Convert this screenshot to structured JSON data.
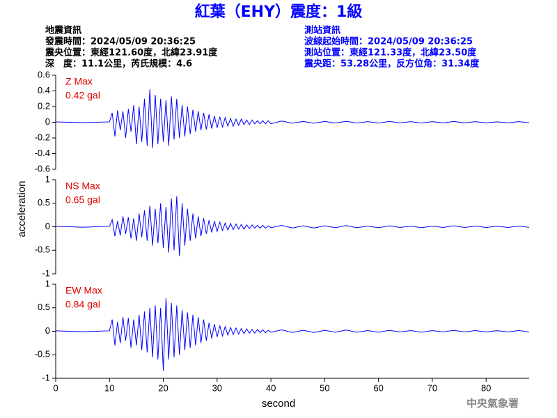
{
  "header": {
    "title": "紅葉（EHY）震度：1級",
    "left_info": [
      "地震資訊",
      "發震時間：2024/05/09 20:36:25",
      "震央位置：東經121.60度，北緯23.91度",
      "深　度：11.1公里，芮氏規模：4.6"
    ],
    "right_info": [
      "測站資訊",
      "波線起始時間：2024/05/09 20:36:25",
      "測站位置：東經121.33度，北緯23.50度",
      "震央距：53.28公里，反方位角：31.34度"
    ],
    "ylabel": "acceleration",
    "watermark": "中央氣象署"
  },
  "chart_data": [
    {
      "type": "line",
      "label": "Z Max",
      "max_label": "0.42 gal",
      "color": "#0000ff",
      "xlim": [
        0,
        88
      ],
      "ylim": [
        -0.6,
        0.6
      ],
      "yticks": [
        -0.6,
        -0.4,
        -0.2,
        0,
        0.2,
        0.4,
        0.6
      ],
      "x": [
        0,
        5,
        10,
        10.5,
        11,
        11.5,
        12,
        12.5,
        13,
        13.5,
        14,
        14.5,
        15,
        15.5,
        16,
        16.5,
        17,
        17.5,
        18,
        18.5,
        19,
        19.5,
        20,
        20.5,
        21,
        21.5,
        22,
        22.5,
        23,
        23.5,
        24,
        24.5,
        25,
        25.5,
        26,
        26.5,
        27,
        27.5,
        28,
        28.5,
        29,
        29.5,
        30,
        30.5,
        31,
        31.5,
        32,
        32.5,
        33,
        33.5,
        34,
        34.5,
        35,
        35.5,
        36,
        36.5,
        37,
        37.5,
        38,
        38.5,
        39,
        39.5,
        40,
        42,
        44,
        46,
        48,
        50,
        52,
        54,
        56,
        58,
        60,
        62,
        64,
        66,
        68,
        70,
        72,
        74,
        76,
        78,
        80,
        82,
        84,
        86,
        88
      ],
      "values": [
        0.005,
        -0.005,
        0.005,
        0.12,
        -0.18,
        0.15,
        -0.1,
        0.14,
        -0.2,
        0.17,
        -0.12,
        0.22,
        -0.28,
        0.2,
        -0.25,
        0.3,
        -0.3,
        0.42,
        -0.33,
        0.35,
        -0.28,
        0.3,
        -0.25,
        0.28,
        -0.3,
        0.33,
        -0.22,
        0.3,
        -0.2,
        0.22,
        -0.18,
        0.2,
        -0.15,
        0.16,
        -0.12,
        0.14,
        -0.1,
        0.12,
        -0.09,
        0.1,
        -0.08,
        0.08,
        -0.07,
        0.07,
        -0.06,
        0.06,
        -0.05,
        0.05,
        -0.05,
        0.04,
        -0.04,
        0.04,
        -0.03,
        0.03,
        -0.03,
        0.03,
        -0.02,
        0.02,
        -0.02,
        0.02,
        -0.02,
        0.02,
        -0.02,
        0.015,
        -0.012,
        0.01,
        -0.012,
        0.01,
        -0.01,
        0.012,
        -0.01,
        0.008,
        -0.01,
        0.01,
        -0.008,
        0.008,
        -0.01,
        0.008,
        -0.008,
        0.01,
        -0.008,
        0.008,
        -0.008,
        0.006,
        -0.008,
        0.008,
        -0.006
      ]
    },
    {
      "type": "line",
      "label": "NS Max",
      "max_label": "0.65 gal",
      "color": "#0000ff",
      "xlim": [
        0,
        88
      ],
      "ylim": [
        -1,
        1
      ],
      "yticks": [
        -1,
        -0.5,
        0,
        0.5,
        1
      ],
      "x": [
        0,
        5,
        10,
        10.5,
        11,
        11.5,
        12,
        12.5,
        13,
        13.5,
        14,
        14.5,
        15,
        15.5,
        16,
        16.5,
        17,
        17.5,
        18,
        18.5,
        19,
        19.5,
        20,
        20.5,
        21,
        21.5,
        22,
        22.5,
        23,
        23.5,
        24,
        24.5,
        25,
        25.5,
        26,
        26.5,
        27,
        27.5,
        28,
        28.5,
        29,
        29.5,
        30,
        30.5,
        31,
        31.5,
        32,
        32.5,
        33,
        33.5,
        34,
        34.5,
        35,
        35.5,
        36,
        36.5,
        37,
        37.5,
        38,
        38.5,
        39,
        39.5,
        40,
        42,
        44,
        46,
        48,
        50,
        52,
        54,
        56,
        58,
        60,
        62,
        64,
        66,
        68,
        70,
        72,
        74,
        76,
        78,
        80,
        82,
        84,
        86,
        88
      ],
      "values": [
        0.01,
        -0.01,
        0.01,
        0.15,
        -0.2,
        0.12,
        -0.18,
        0.22,
        -0.15,
        0.2,
        -0.25,
        0.18,
        -0.3,
        0.28,
        -0.22,
        0.35,
        -0.3,
        0.45,
        -0.4,
        0.38,
        -0.35,
        0.5,
        -0.45,
        0.42,
        -0.55,
        0.6,
        -0.5,
        0.65,
        -0.62,
        0.5,
        -0.4,
        0.38,
        -0.3,
        0.28,
        -0.25,
        0.22,
        -0.2,
        0.18,
        -0.15,
        0.14,
        -0.12,
        0.12,
        -0.1,
        0.1,
        -0.08,
        0.08,
        -0.07,
        0.07,
        -0.06,
        0.06,
        -0.05,
        0.05,
        -0.05,
        0.04,
        -0.04,
        0.04,
        -0.03,
        0.03,
        -0.03,
        0.03,
        -0.03,
        0.02,
        -0.02,
        0.03,
        -0.025,
        0.02,
        -0.025,
        0.02,
        -0.02,
        0.025,
        -0.02,
        0.015,
        -0.02,
        0.02,
        -0.015,
        0.015,
        -0.02,
        0.015,
        -0.015,
        0.02,
        -0.015,
        0.015,
        -0.015,
        0.012,
        -0.015,
        0.015,
        -0.012
      ]
    },
    {
      "type": "line",
      "label": "EW Max",
      "max_label": "0.84 gal",
      "color": "#0000ff",
      "xlim": [
        0,
        88
      ],
      "ylim": [
        -1,
        1
      ],
      "yticks": [
        -1,
        -0.5,
        0,
        0.5,
        1
      ],
      "xticks": [
        0,
        10,
        20,
        30,
        40,
        50,
        60,
        70,
        80
      ],
      "xlabel": "second",
      "x": [
        0,
        5,
        10,
        10.5,
        11,
        11.5,
        12,
        12.5,
        13,
        13.5,
        14,
        14.5,
        15,
        15.5,
        16,
        16.5,
        17,
        17.5,
        18,
        18.5,
        19,
        19.5,
        20,
        20.5,
        21,
        21.5,
        22,
        22.5,
        23,
        23.5,
        24,
        24.5,
        25,
        25.5,
        26,
        26.5,
        27,
        27.5,
        28,
        28.5,
        29,
        29.5,
        30,
        30.5,
        31,
        31.5,
        32,
        32.5,
        33,
        33.5,
        34,
        34.5,
        35,
        35.5,
        36,
        36.5,
        37,
        37.5,
        38,
        38.5,
        39,
        39.5,
        40,
        42,
        44,
        46,
        48,
        50,
        52,
        54,
        56,
        58,
        60,
        62,
        64,
        66,
        68,
        70,
        72,
        74,
        76,
        78,
        80,
        82,
        84,
        86,
        88
      ],
      "values": [
        0.01,
        -0.01,
        0.01,
        0.25,
        -0.3,
        0.2,
        -0.25,
        0.3,
        -0.2,
        0.28,
        -0.35,
        0.25,
        -0.3,
        0.35,
        -0.4,
        0.42,
        -0.45,
        0.5,
        -0.55,
        0.55,
        -0.6,
        0.5,
        -0.84,
        0.7,
        -0.6,
        0.6,
        -0.55,
        0.55,
        -0.5,
        0.45,
        -0.4,
        0.4,
        -0.35,
        0.35,
        -0.3,
        0.3,
        -0.25,
        0.25,
        -0.2,
        0.18,
        -0.15,
        0.15,
        -0.12,
        0.12,
        -0.1,
        0.1,
        -0.08,
        0.08,
        -0.07,
        0.07,
        -0.06,
        0.06,
        -0.05,
        0.05,
        -0.04,
        0.04,
        -0.04,
        0.04,
        -0.03,
        0.03,
        -0.03,
        0.02,
        -0.02,
        0.03,
        -0.025,
        0.02,
        -0.025,
        0.02,
        -0.02,
        0.025,
        -0.02,
        0.015,
        -0.02,
        0.02,
        -0.015,
        0.015,
        -0.02,
        0.015,
        -0.015,
        0.02,
        -0.015,
        0.015,
        -0.015,
        0.012,
        -0.015,
        0.015,
        -0.012
      ]
    }
  ]
}
